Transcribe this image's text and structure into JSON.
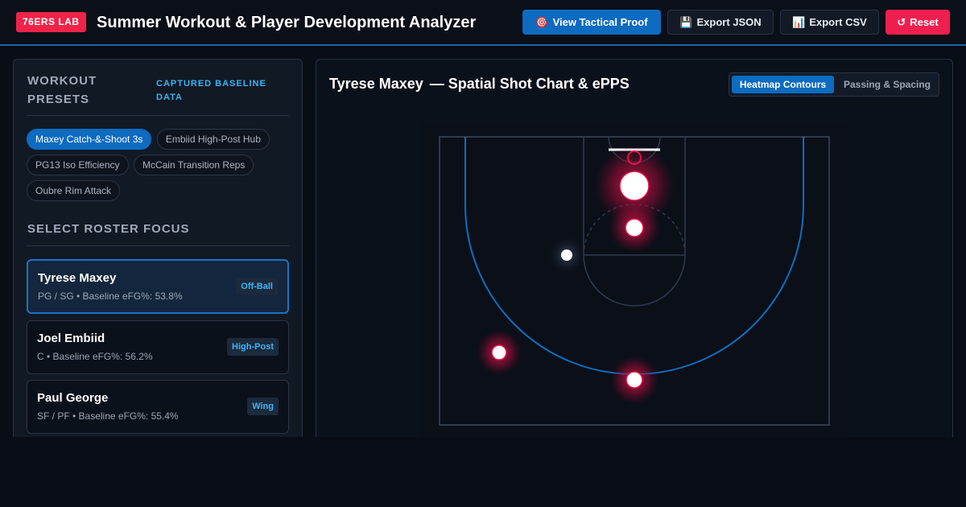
{
  "header": {
    "brand": "76ERS LAB",
    "title": "Summer Workout & Player Development Analyzer",
    "buttons": {
      "tactical": {
        "icon": "🎯",
        "label": "View Tactical Proof"
      },
      "json": {
        "icon": "💾",
        "label": "Export JSON"
      },
      "csv": {
        "icon": "📊",
        "label": "Export CSV"
      },
      "reset": {
        "icon": "↺",
        "label": "Reset"
      }
    }
  },
  "presets": {
    "title": "WORKOUT PRESETS",
    "subtitle": "CAPTURED BASELINE DATA",
    "items": [
      {
        "label": "Maxey Catch-&-Shoot 3s",
        "active": true
      },
      {
        "label": "Embiid High-Post Hub",
        "active": false
      },
      {
        "label": "PG13 Iso Efficiency",
        "active": false
      },
      {
        "label": "McCain Transition Reps",
        "active": false
      },
      {
        "label": "Oubre Rim Attack",
        "active": false
      }
    ]
  },
  "roster": {
    "title": "SELECT ROSTER FOCUS",
    "players": [
      {
        "name": "Tyrese Maxey",
        "meta": "PG / SG • Baseline eFG%: 53.8%",
        "tag": "Off-Ball",
        "selected": true
      },
      {
        "name": "Joel Embiid",
        "meta": "C • Baseline eFG%: 56.2%",
        "tag": "High-Post",
        "selected": false
      },
      {
        "name": "Paul George",
        "meta": "SF / PF • Baseline eFG%: 55.4%",
        "tag": "Wing",
        "selected": false
      }
    ]
  },
  "chart": {
    "player": "Tyrese Maxey",
    "subtitle": "— Spatial Shot Chart & ePPS",
    "toggle": {
      "active": "Heatmap Contours",
      "inactive": "Passing & Spacing"
    },
    "colors": {
      "court_line": "#0a6fc2",
      "heat": "#e2124a",
      "dot": "#ffffff"
    }
  }
}
